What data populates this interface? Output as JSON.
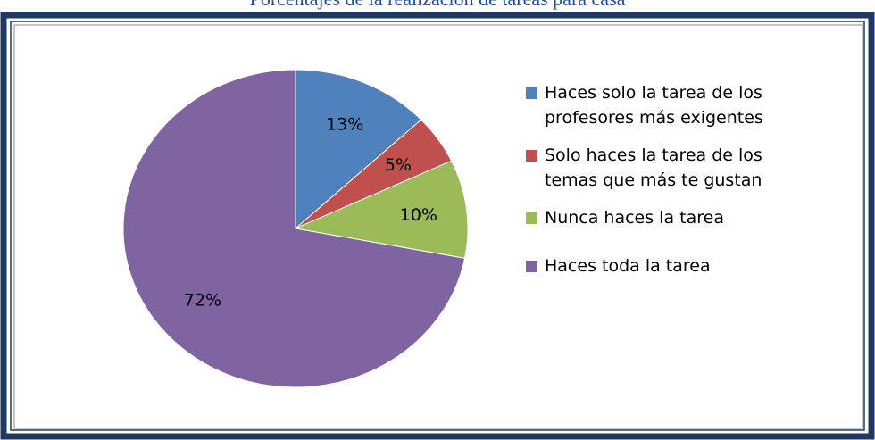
{
  "chart_data": {
    "type": "pie",
    "title": "Porcentajes de la realización de tareas para casa",
    "categories": [
      "Haces solo la tarea de los profesores más exigentes",
      "Solo haces la tarea de los temas que más te gustan",
      "Nunca haces la tarea",
      "Haces toda la tarea"
    ],
    "values": [
      13,
      5,
      10,
      72
    ],
    "value_labels": [
      "13%",
      "5%",
      "10%",
      "72%"
    ],
    "colors": [
      "#4f81bd",
      "#c0504d",
      "#9bbb59",
      "#8064a2"
    ]
  }
}
